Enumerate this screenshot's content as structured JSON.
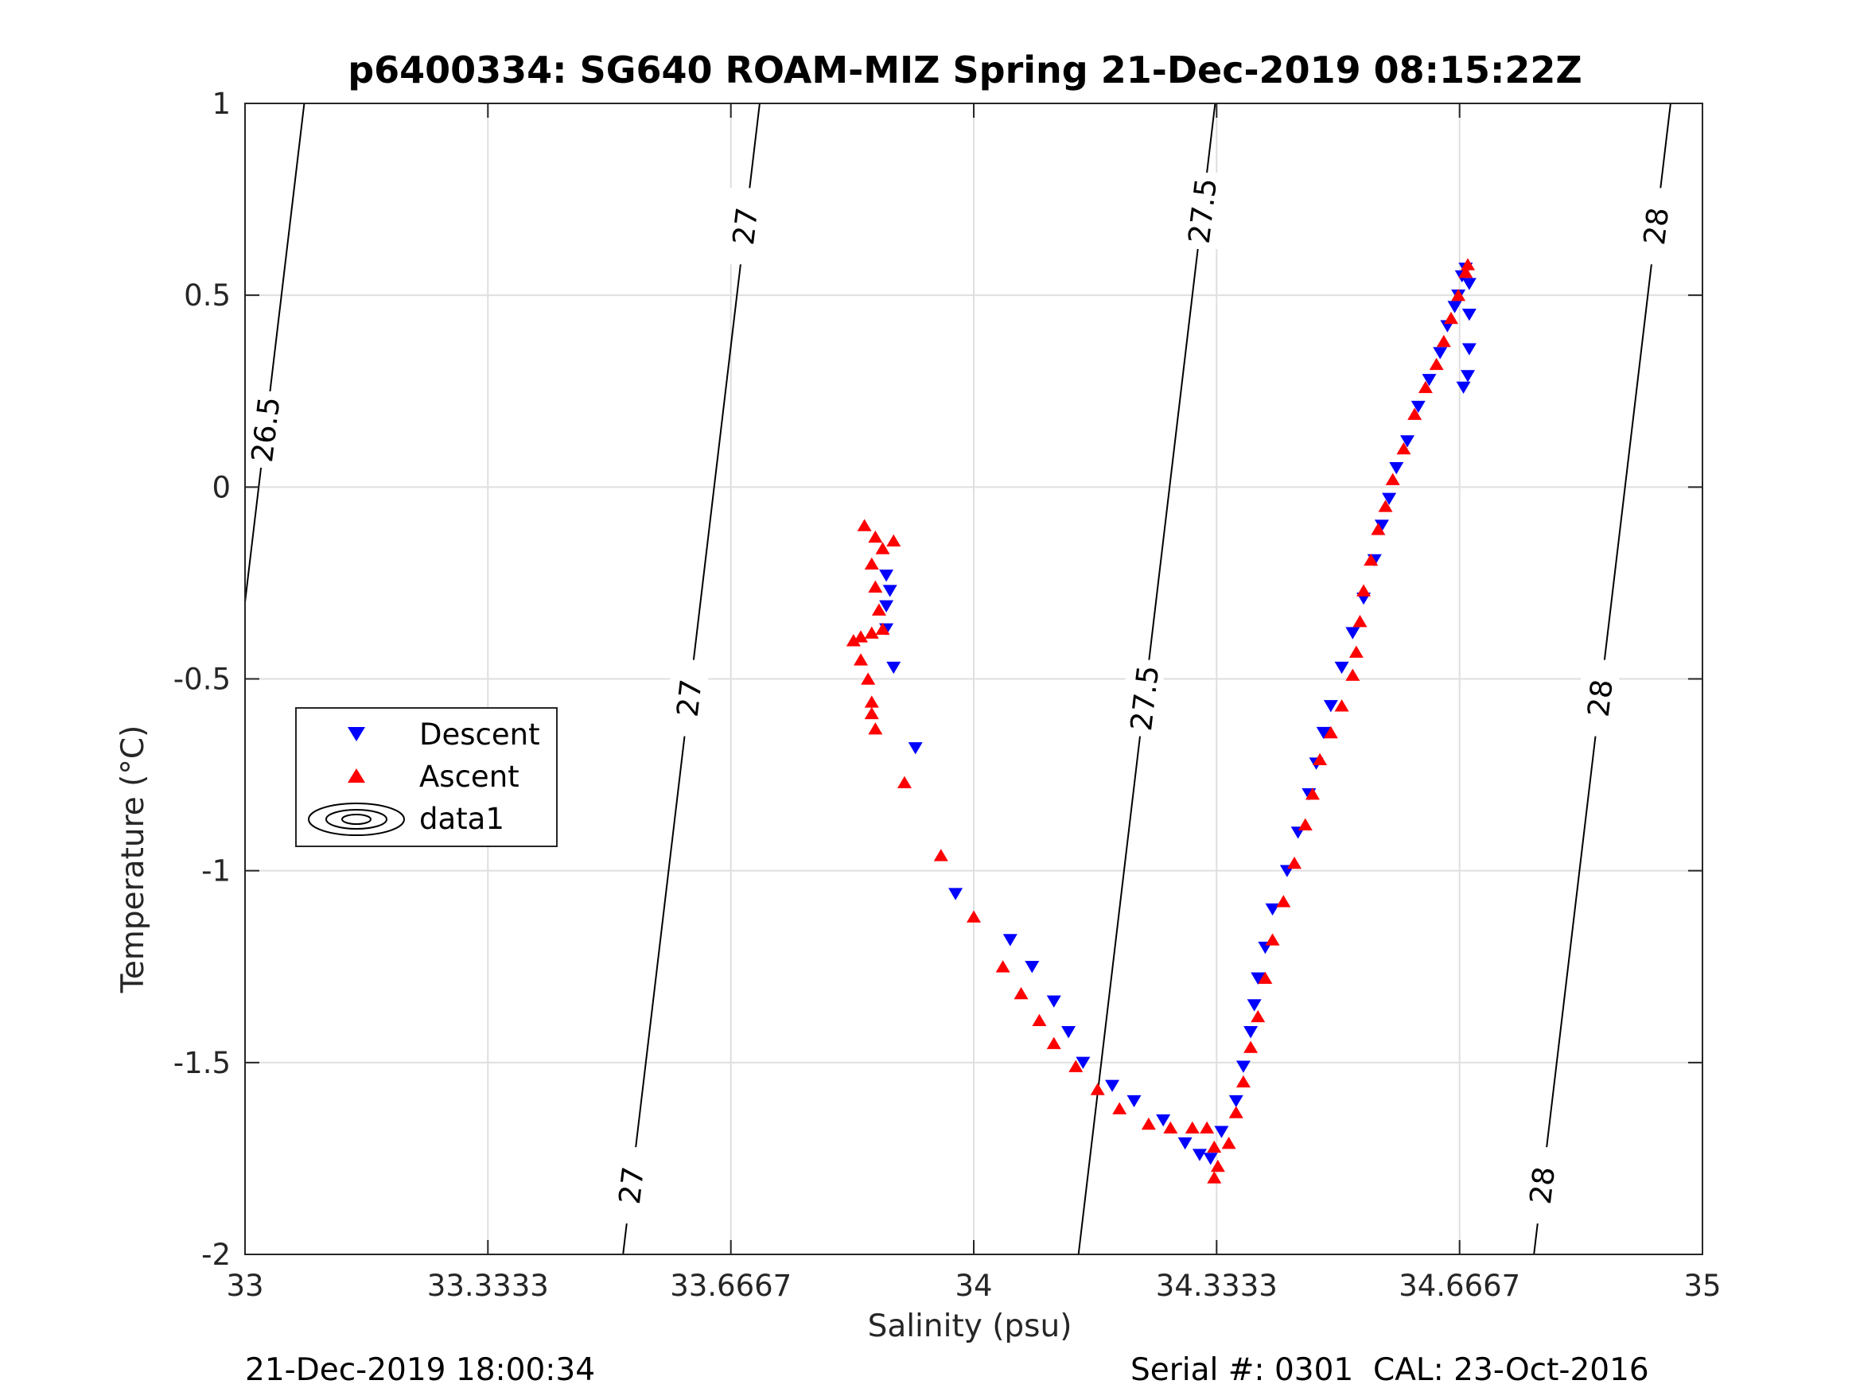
{
  "chart_data": {
    "type": "scatter",
    "title": "p6400334: SG640 ROAM-MIZ Spring 21-Dec-2019 08:15:22Z",
    "xlabel": "Salinity (psu)",
    "ylabel": "Temperature (°C)",
    "xlim": [
      33,
      35
    ],
    "ylim": [
      -2,
      1
    ],
    "x_ticks": [
      33,
      33.3333,
      33.6667,
      34,
      34.3333,
      34.6667,
      35
    ],
    "x_tick_labels": [
      "33",
      "33.3333",
      "33.6667",
      "34",
      "34.3333",
      "34.6667",
      "35"
    ],
    "y_ticks": [
      -2,
      -1.5,
      -1,
      -0.5,
      0,
      0.5,
      1
    ],
    "y_tick_labels": [
      "-2",
      "-1.5",
      "-1",
      "-0.5",
      "0",
      "0.5",
      "1"
    ],
    "grid": true,
    "legend_position": "left-middle",
    "series": [
      {
        "name": "Descent",
        "marker": "triangle-down",
        "color": "#0000ff",
        "points": [
          [
            33.88,
            -0.23
          ],
          [
            33.885,
            -0.27
          ],
          [
            33.88,
            -0.31
          ],
          [
            33.88,
            -0.37
          ],
          [
            33.89,
            -0.47
          ],
          [
            33.92,
            -0.68
          ],
          [
            33.975,
            -1.06
          ],
          [
            34.05,
            -1.18
          ],
          [
            34.08,
            -1.25
          ],
          [
            34.11,
            -1.34
          ],
          [
            34.13,
            -1.42
          ],
          [
            34.15,
            -1.5
          ],
          [
            34.19,
            -1.56
          ],
          [
            34.22,
            -1.6
          ],
          [
            34.26,
            -1.65
          ],
          [
            34.29,
            -1.71
          ],
          [
            34.31,
            -1.74
          ],
          [
            34.325,
            -1.75
          ],
          [
            34.34,
            -1.68
          ],
          [
            34.36,
            -1.6
          ],
          [
            34.37,
            -1.51
          ],
          [
            34.38,
            -1.42
          ],
          [
            34.385,
            -1.35
          ],
          [
            34.39,
            -1.28
          ],
          [
            34.4,
            -1.2
          ],
          [
            34.41,
            -1.1
          ],
          [
            34.43,
            -1.0
          ],
          [
            34.445,
            -0.9
          ],
          [
            34.46,
            -0.8
          ],
          [
            34.47,
            -0.72
          ],
          [
            34.48,
            -0.64
          ],
          [
            34.49,
            -0.57
          ],
          [
            34.505,
            -0.47
          ],
          [
            34.52,
            -0.38
          ],
          [
            34.535,
            -0.29
          ],
          [
            34.55,
            -0.19
          ],
          [
            34.56,
            -0.1
          ],
          [
            34.57,
            -0.03
          ],
          [
            34.58,
            0.05
          ],
          [
            34.595,
            0.12
          ],
          [
            34.61,
            0.21
          ],
          [
            34.625,
            0.28
          ],
          [
            34.64,
            0.35
          ],
          [
            34.65,
            0.42
          ],
          [
            34.66,
            0.47
          ],
          [
            34.665,
            0.5
          ],
          [
            34.67,
            0.55
          ],
          [
            34.675,
            0.57
          ],
          [
            34.68,
            0.53
          ],
          [
            34.68,
            0.45
          ],
          [
            34.68,
            0.36
          ],
          [
            34.678,
            0.29
          ],
          [
            34.672,
            0.26
          ]
        ]
      },
      {
        "name": "Ascent",
        "marker": "triangle-up",
        "color": "#ff0000",
        "points": [
          [
            33.85,
            -0.1
          ],
          [
            33.865,
            -0.13
          ],
          [
            33.875,
            -0.16
          ],
          [
            33.89,
            -0.14
          ],
          [
            33.86,
            -0.2
          ],
          [
            33.865,
            -0.26
          ],
          [
            33.87,
            -0.32
          ],
          [
            33.875,
            -0.37
          ],
          [
            33.86,
            -0.38
          ],
          [
            33.845,
            -0.39
          ],
          [
            33.835,
            -0.4
          ],
          [
            33.845,
            -0.45
          ],
          [
            33.855,
            -0.5
          ],
          [
            33.86,
            -0.56
          ],
          [
            33.86,
            -0.59
          ],
          [
            33.865,
            -0.63
          ],
          [
            33.905,
            -0.77
          ],
          [
            33.955,
            -0.96
          ],
          [
            34.0,
            -1.12
          ],
          [
            34.04,
            -1.25
          ],
          [
            34.065,
            -1.32
          ],
          [
            34.09,
            -1.39
          ],
          [
            34.11,
            -1.45
          ],
          [
            34.14,
            -1.51
          ],
          [
            34.17,
            -1.57
          ],
          [
            34.2,
            -1.62
          ],
          [
            34.24,
            -1.66
          ],
          [
            34.27,
            -1.67
          ],
          [
            34.3,
            -1.67
          ],
          [
            34.32,
            -1.67
          ],
          [
            34.33,
            -1.72
          ],
          [
            34.33,
            -1.8
          ],
          [
            34.335,
            -1.77
          ],
          [
            34.35,
            -1.71
          ],
          [
            34.36,
            -1.63
          ],
          [
            34.37,
            -1.55
          ],
          [
            34.38,
            -1.46
          ],
          [
            34.39,
            -1.38
          ],
          [
            34.4,
            -1.28
          ],
          [
            34.41,
            -1.18
          ],
          [
            34.425,
            -1.08
          ],
          [
            34.44,
            -0.98
          ],
          [
            34.455,
            -0.88
          ],
          [
            34.465,
            -0.8
          ],
          [
            34.475,
            -0.71
          ],
          [
            34.49,
            -0.64
          ],
          [
            34.505,
            -0.57
          ],
          [
            34.52,
            -0.49
          ],
          [
            34.525,
            -0.43
          ],
          [
            34.53,
            -0.35
          ],
          [
            34.535,
            -0.27
          ],
          [
            34.545,
            -0.19
          ],
          [
            34.555,
            -0.11
          ],
          [
            34.565,
            -0.05
          ],
          [
            34.575,
            0.02
          ],
          [
            34.59,
            0.1
          ],
          [
            34.605,
            0.19
          ],
          [
            34.62,
            0.26
          ],
          [
            34.635,
            0.32
          ],
          [
            34.645,
            0.38
          ],
          [
            34.655,
            0.44
          ],
          [
            34.665,
            0.5
          ],
          [
            34.675,
            0.56
          ],
          [
            34.678,
            0.58
          ]
        ]
      }
    ],
    "contour_legend_entry": "data1",
    "density_contours": [
      {
        "label": "26.5",
        "sigma": 26.5
      },
      {
        "label": "27",
        "sigma": 27
      },
      {
        "label": "27.5",
        "sigma": 27.5
      },
      {
        "label": "28",
        "sigma": 28
      }
    ],
    "footer_left": "21-Dec-2019 18:00:34",
    "footer_right": "Serial #: 0301  CAL: 23-Oct-2016"
  }
}
